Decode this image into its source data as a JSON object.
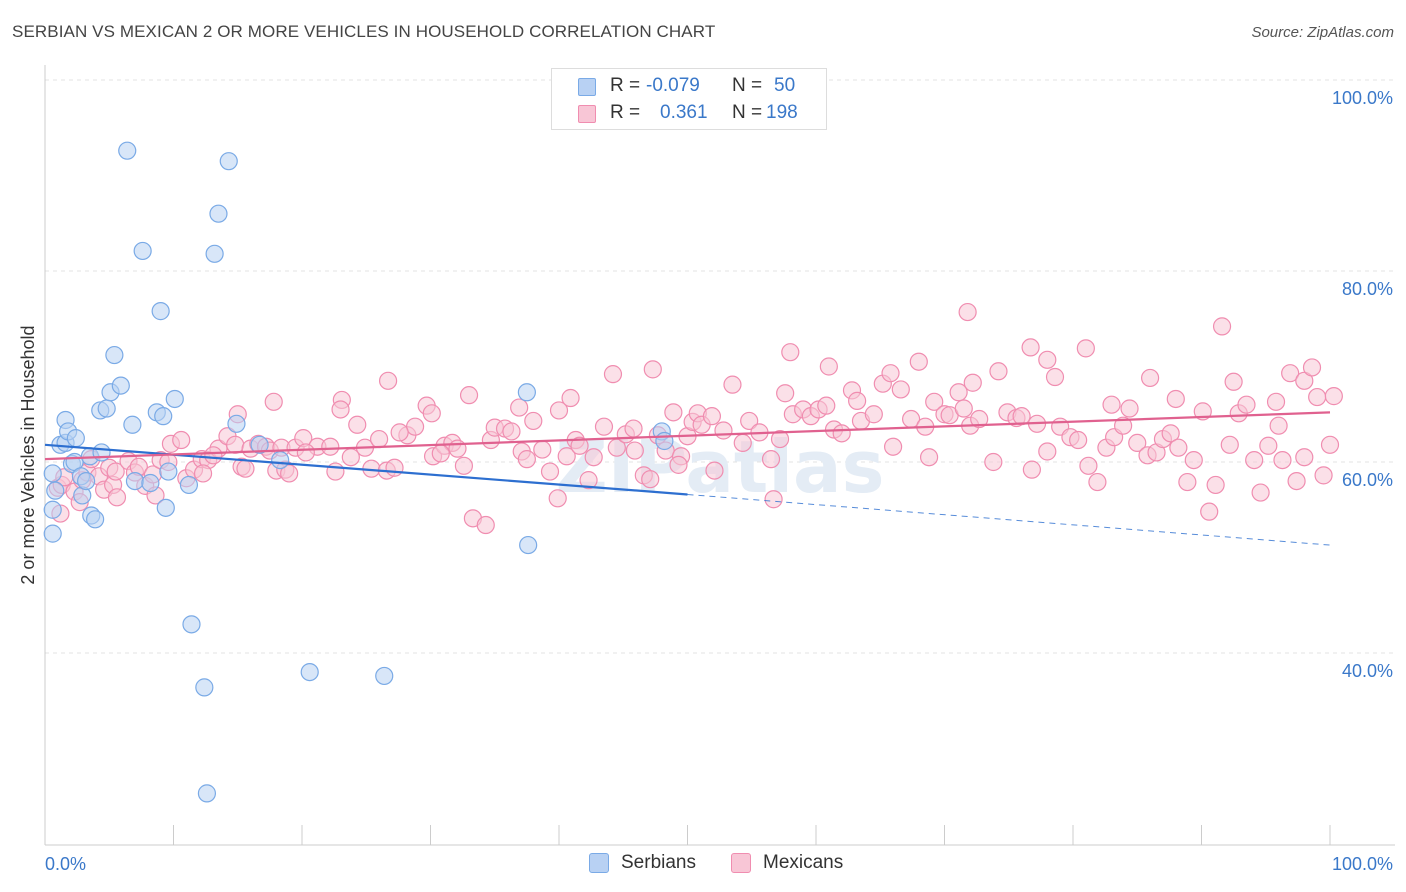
{
  "header": {
    "title": "SERBIAN VS MEXICAN 2 OR MORE VEHICLES IN HOUSEHOLD CORRELATION CHART",
    "source": "Source: ZipAtlas.com"
  },
  "legend": {
    "rows": [
      {
        "r_label": "R =",
        "r_value": "-0.079",
        "n_label": "N =",
        "n_value": "50",
        "color": "#7aaae6"
      },
      {
        "r_label": "R =",
        "r_value": "0.361",
        "n_label": "N =",
        "n_value": "198",
        "color": "#f08db0"
      }
    ]
  },
  "bottom_legend": [
    {
      "label": "Serbians",
      "fill": "#b8d1f3",
      "stroke": "#7aaae6"
    },
    {
      "label": "Mexicans",
      "fill": "#f8c6d6",
      "stroke": "#f08db0"
    }
  ],
  "chart_data": {
    "type": "scatter",
    "title": "SERBIAN VS MEXICAN 2 OR MORE VEHICLES IN HOUSEHOLD CORRELATION CHART",
    "xlabel": "",
    "ylabel": "2 or more Vehicles in Household",
    "xlim": [
      0,
      100
    ],
    "ylim": [
      18,
      100
    ],
    "x_tick_labels": [
      "0.0%",
      "100.0%"
    ],
    "y_ticks": [
      40,
      60,
      80,
      100
    ],
    "y_tick_labels": [
      "40.0%",
      "60.0%",
      "80.0%",
      "100.0%"
    ],
    "grid": true,
    "watermark": "ZIPatlas",
    "series": [
      {
        "name": "Serbians",
        "color": "#7aaae6",
        "fill": "#b8d1f3",
        "trend": {
          "x0": 0,
          "y0": 61.8,
          "x1": 50,
          "y1": 56.6,
          "dash_to_x": 100,
          "dash_to_y": 51.3
        },
        "points": [
          [
            0.6,
            55.0
          ],
          [
            0.6,
            52.5
          ],
          [
            0.8,
            57.0
          ],
          [
            0.6,
            58.8
          ],
          [
            1.2,
            61.8
          ],
          [
            1.6,
            62.0
          ],
          [
            1.6,
            64.4
          ],
          [
            1.8,
            63.2
          ],
          [
            2.1,
            59.8
          ],
          [
            2.3,
            60.0
          ],
          [
            2.4,
            62.5
          ],
          [
            2.8,
            58.5
          ],
          [
            2.9,
            56.5
          ],
          [
            3.2,
            58.0
          ],
          [
            3.5,
            60.6
          ],
          [
            3.6,
            54.4
          ],
          [
            3.9,
            54.0
          ],
          [
            4.3,
            65.4
          ],
          [
            4.4,
            61.0
          ],
          [
            4.8,
            65.6
          ],
          [
            5.1,
            67.3
          ],
          [
            5.4,
            71.2
          ],
          [
            5.9,
            68.0
          ],
          [
            6.4,
            92.6
          ],
          [
            6.8,
            63.9
          ],
          [
            7.0,
            58.0
          ],
          [
            7.6,
            82.1
          ],
          [
            8.2,
            57.8
          ],
          [
            8.7,
            65.2
          ],
          [
            9.0,
            75.8
          ],
          [
            9.4,
            55.2
          ],
          [
            9.6,
            59.0
          ],
          [
            9.2,
            64.8
          ],
          [
            10.1,
            66.6
          ],
          [
            11.2,
            57.6
          ],
          [
            11.4,
            43.0
          ],
          [
            12.4,
            36.4
          ],
          [
            12.6,
            25.3
          ],
          [
            13.2,
            81.8
          ],
          [
            13.5,
            86.0
          ],
          [
            14.3,
            91.5
          ],
          [
            14.9,
            64.0
          ],
          [
            16.7,
            61.8
          ],
          [
            18.3,
            60.2
          ],
          [
            20.6,
            38.0
          ],
          [
            26.4,
            37.6
          ],
          [
            37.5,
            67.3
          ],
          [
            37.6,
            51.3
          ],
          [
            48.0,
            63.2
          ],
          [
            48.2,
            62.2
          ]
        ]
      },
      {
        "name": "Mexicans",
        "color": "#f08db0",
        "fill": "#f8c6d6",
        "trend": {
          "x0": 0,
          "y0": 60.3,
          "x1": 100,
          "y1": 65.2
        },
        "points": [
          [
            1.0,
            57.3
          ],
          [
            1.2,
            54.6
          ],
          [
            1.3,
            57.6
          ],
          [
            1.5,
            58.4
          ],
          [
            2.3,
            56.9
          ],
          [
            2.7,
            55.8
          ],
          [
            2.9,
            58.1
          ],
          [
            3.3,
            58.9
          ],
          [
            3.6,
            60.3
          ],
          [
            4.2,
            58.5
          ],
          [
            4.6,
            57.1
          ],
          [
            5.0,
            59.4
          ],
          [
            5.3,
            57.6
          ],
          [
            5.5,
            59.0
          ],
          [
            5.6,
            56.3
          ],
          [
            6.5,
            60.1
          ],
          [
            7.0,
            58.9
          ],
          [
            7.3,
            59.5
          ],
          [
            7.8,
            57.5
          ],
          [
            8.4,
            58.7
          ],
          [
            8.6,
            56.5
          ],
          [
            9.0,
            60.2
          ],
          [
            9.6,
            60.0
          ],
          [
            9.8,
            61.9
          ],
          [
            10.6,
            62.3
          ],
          [
            11.0,
            58.3
          ],
          [
            11.6,
            59.2
          ],
          [
            12.2,
            60.3
          ],
          [
            12.7,
            60.2
          ],
          [
            13.5,
            61.4
          ],
          [
            14.2,
            62.7
          ],
          [
            14.8,
            61.8
          ],
          [
            15.3,
            59.5
          ],
          [
            15.6,
            59.3
          ],
          [
            16.0,
            61.4
          ],
          [
            16.6,
            61.9
          ],
          [
            17.2,
            61.6
          ],
          [
            17.5,
            61.2
          ],
          [
            18.0,
            59.1
          ],
          [
            18.4,
            61.5
          ],
          [
            18.7,
            59.2
          ],
          [
            19.0,
            58.8
          ],
          [
            19.5,
            61.5
          ],
          [
            20.1,
            62.5
          ],
          [
            21.2,
            61.6
          ],
          [
            22.2,
            61.6
          ],
          [
            22.6,
            59.0
          ],
          [
            23.8,
            60.5
          ],
          [
            24.9,
            61.5
          ],
          [
            25.4,
            59.3
          ],
          [
            26.0,
            62.4
          ],
          [
            26.6,
            59.1
          ],
          [
            27.2,
            59.4
          ],
          [
            28.2,
            62.8
          ],
          [
            28.8,
            63.7
          ],
          [
            29.7,
            65.9
          ],
          [
            30.2,
            60.6
          ],
          [
            31.1,
            61.7
          ],
          [
            31.7,
            62.0
          ],
          [
            32.1,
            61.4
          ],
          [
            32.6,
            59.6
          ],
          [
            33.3,
            54.1
          ],
          [
            34.3,
            53.4
          ],
          [
            34.7,
            62.3
          ],
          [
            35.0,
            63.6
          ],
          [
            35.8,
            63.5
          ],
          [
            36.3,
            63.2
          ],
          [
            36.9,
            65.7
          ],
          [
            37.1,
            61.1
          ],
          [
            38.0,
            64.3
          ],
          [
            38.7,
            61.3
          ],
          [
            39.3,
            59.0
          ],
          [
            40.0,
            65.4
          ],
          [
            40.6,
            60.6
          ],
          [
            41.3,
            62.3
          ],
          [
            41.6,
            61.7
          ],
          [
            42.7,
            60.5
          ],
          [
            43.5,
            63.7
          ],
          [
            44.5,
            61.5
          ],
          [
            45.2,
            62.9
          ],
          [
            45.8,
            63.5
          ],
          [
            46.6,
            58.6
          ],
          [
            47.1,
            58.2
          ],
          [
            47.7,
            62.8
          ],
          [
            48.3,
            61.2
          ],
          [
            48.9,
            65.2
          ],
          [
            49.5,
            60.6
          ],
          [
            50.0,
            62.7
          ],
          [
            50.4,
            64.2
          ],
          [
            50.8,
            65.1
          ],
          [
            51.1,
            63.9
          ],
          [
            51.9,
            64.8
          ],
          [
            52.8,
            63.3
          ],
          [
            53.5,
            68.1
          ],
          [
            54.3,
            62.0
          ],
          [
            54.8,
            64.3
          ],
          [
            55.6,
            63.1
          ],
          [
            56.7,
            56.1
          ],
          [
            57.2,
            62.4
          ],
          [
            57.6,
            67.2
          ],
          [
            58.2,
            65.0
          ],
          [
            59.0,
            65.5
          ],
          [
            59.6,
            64.8
          ],
          [
            60.2,
            65.5
          ],
          [
            60.8,
            65.9
          ],
          [
            61.4,
            63.4
          ],
          [
            62.0,
            63.0
          ],
          [
            62.8,
            67.5
          ],
          [
            63.5,
            64.3
          ],
          [
            64.5,
            65.0
          ],
          [
            65.2,
            68.2
          ],
          [
            66.0,
            61.6
          ],
          [
            66.6,
            67.6
          ],
          [
            67.4,
            64.5
          ],
          [
            68.0,
            70.5
          ],
          [
            68.5,
            63.7
          ],
          [
            69.2,
            66.3
          ],
          [
            70.0,
            65.0
          ],
          [
            70.4,
            64.9
          ],
          [
            71.1,
            67.3
          ],
          [
            71.5,
            65.6
          ],
          [
            72.0,
            63.8
          ],
          [
            72.7,
            64.5
          ],
          [
            73.8,
            60.0
          ],
          [
            74.2,
            69.5
          ],
          [
            74.9,
            65.2
          ],
          [
            75.6,
            64.6
          ],
          [
            76.0,
            64.8
          ],
          [
            76.7,
            72.0
          ],
          [
            77.2,
            64.0
          ],
          [
            78.0,
            61.1
          ],
          [
            78.6,
            68.9
          ],
          [
            79.0,
            63.7
          ],
          [
            79.8,
            62.6
          ],
          [
            80.4,
            62.3
          ],
          [
            81.2,
            59.6
          ],
          [
            81.9,
            57.9
          ],
          [
            82.6,
            61.5
          ],
          [
            83.2,
            62.6
          ],
          [
            83.9,
            63.8
          ],
          [
            84.4,
            65.6
          ],
          [
            85.0,
            62.0
          ],
          [
            85.8,
            60.7
          ],
          [
            86.5,
            61.0
          ],
          [
            87.0,
            62.4
          ],
          [
            87.6,
            63.0
          ],
          [
            88.2,
            61.5
          ],
          [
            88.9,
            57.9
          ],
          [
            89.4,
            60.2
          ],
          [
            90.1,
            65.3
          ],
          [
            90.6,
            54.8
          ],
          [
            91.1,
            57.6
          ],
          [
            91.6,
            74.2
          ],
          [
            92.2,
            61.8
          ],
          [
            92.9,
            65.1
          ],
          [
            93.5,
            66.0
          ],
          [
            94.1,
            60.2
          ],
          [
            94.6,
            56.8
          ],
          [
            95.2,
            61.7
          ],
          [
            95.8,
            66.3
          ],
          [
            96.3,
            60.2
          ],
          [
            96.9,
            69.3
          ],
          [
            97.4,
            58.0
          ],
          [
            98.0,
            68.5
          ],
          [
            98.6,
            69.9
          ],
          [
            99.0,
            66.8
          ],
          [
            99.5,
            58.6
          ],
          [
            100.0,
            61.8
          ],
          [
            100.3,
            66.9
          ],
          [
            76.8,
            59.2
          ],
          [
            71.8,
            75.7
          ],
          [
            63.2,
            66.4
          ],
          [
            56.5,
            60.3
          ],
          [
            52.1,
            59.1
          ],
          [
            45.9,
            61.2
          ],
          [
            44.2,
            69.2
          ],
          [
            42.3,
            58.1
          ],
          [
            39.9,
            56.2
          ],
          [
            37.5,
            60.3
          ],
          [
            30.8,
            60.9
          ],
          [
            27.6,
            63.1
          ],
          [
            24.3,
            63.9
          ],
          [
            23.1,
            66.5
          ],
          [
            20.3,
            61.0
          ],
          [
            17.8,
            66.3
          ],
          [
            15.0,
            65.0
          ],
          [
            13.1,
            60.7
          ],
          [
            12.3,
            58.8
          ],
          [
            68.8,
            60.5
          ],
          [
            83.0,
            66.0
          ],
          [
            88.0,
            66.6
          ],
          [
            92.5,
            68.4
          ],
          [
            96.0,
            63.8
          ],
          [
            98.0,
            60.5
          ],
          [
            86.0,
            68.8
          ],
          [
            81.0,
            71.9
          ],
          [
            78.0,
            70.7
          ],
          [
            61.0,
            70.0
          ],
          [
            58.0,
            71.5
          ],
          [
            47.3,
            69.7
          ],
          [
            40.9,
            66.7
          ],
          [
            33.0,
            67.0
          ],
          [
            26.7,
            68.5
          ],
          [
            23.0,
            65.5
          ],
          [
            30.1,
            65.1
          ],
          [
            49.3,
            59.7
          ],
          [
            65.8,
            69.3
          ],
          [
            72.2,
            68.3
          ]
        ]
      }
    ]
  }
}
